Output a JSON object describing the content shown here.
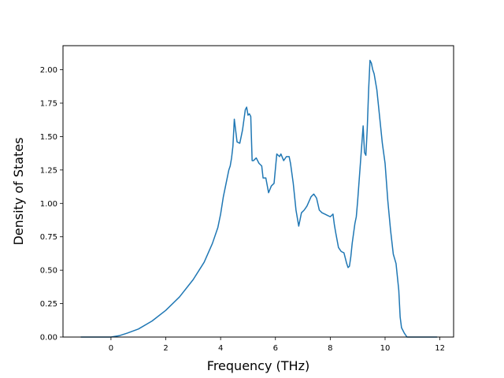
{
  "chart_data": {
    "type": "line",
    "xlabel": "Frequency (THz)",
    "ylabel": "Density of States",
    "xlim": [
      -1.75,
      12.5
    ],
    "ylim": [
      0,
      2.18
    ],
    "xticks": [
      0,
      2,
      4,
      6,
      8,
      10,
      12
    ],
    "xtick_labels": [
      "0",
      "2",
      "4",
      "6",
      "8",
      "10",
      "12"
    ],
    "yticks": [
      0,
      0.25,
      0.5,
      0.75,
      1.0,
      1.25,
      1.5,
      1.75,
      2.0
    ],
    "ytick_labels": [
      "0.00",
      "0.25",
      "0.50",
      "0.75",
      "1.00",
      "1.25",
      "1.50",
      "1.75",
      "2.00"
    ],
    "grid": false,
    "line_color": "#1f77b4",
    "series": [
      {
        "x": [
          -1.1,
          -0.5,
          0.0,
          0.3,
          0.6,
          1.0,
          1.5,
          2.0,
          2.5,
          3.0,
          3.4,
          3.7,
          3.9,
          4.0,
          4.1,
          4.2,
          4.3,
          4.35,
          4.4,
          4.45,
          4.5,
          4.6,
          4.7,
          4.8,
          4.9,
          4.95,
          5.0,
          5.05,
          5.1,
          5.15,
          5.2,
          5.3,
          5.4,
          5.5,
          5.55,
          5.65,
          5.75,
          5.85,
          5.95,
          6.05,
          6.15,
          6.2,
          6.3,
          6.4,
          6.5,
          6.55,
          6.65,
          6.75,
          6.85,
          6.95,
          7.05,
          7.15,
          7.3,
          7.4,
          7.5,
          7.6,
          7.7,
          7.8,
          7.9,
          8.0,
          8.1,
          8.15,
          8.2,
          8.3,
          8.4,
          8.5,
          8.6,
          8.65,
          8.7,
          8.75,
          8.8,
          8.9,
          8.95,
          9.0,
          9.1,
          9.2,
          9.25,
          9.3,
          9.35,
          9.4,
          9.45,
          9.5,
          9.55,
          9.6,
          9.7,
          9.8,
          9.9,
          10.0,
          10.1,
          10.2,
          10.3,
          10.4,
          10.5,
          10.55,
          10.6,
          10.65,
          10.7,
          10.8,
          10.9,
          11.5,
          11.9
        ],
        "y": [
          0.0,
          0.0,
          0.0,
          0.01,
          0.03,
          0.06,
          0.12,
          0.2,
          0.3,
          0.43,
          0.56,
          0.7,
          0.82,
          0.92,
          1.05,
          1.15,
          1.25,
          1.28,
          1.34,
          1.43,
          1.63,
          1.46,
          1.45,
          1.55,
          1.7,
          1.72,
          1.66,
          1.67,
          1.65,
          1.32,
          1.32,
          1.34,
          1.3,
          1.28,
          1.19,
          1.19,
          1.08,
          1.13,
          1.15,
          1.37,
          1.35,
          1.37,
          1.32,
          1.35,
          1.35,
          1.3,
          1.15,
          0.95,
          0.83,
          0.93,
          0.95,
          0.98,
          1.05,
          1.07,
          1.04,
          0.95,
          0.93,
          0.92,
          0.91,
          0.9,
          0.92,
          0.84,
          0.78,
          0.67,
          0.64,
          0.63,
          0.55,
          0.52,
          0.53,
          0.6,
          0.7,
          0.85,
          0.9,
          1.02,
          1.3,
          1.58,
          1.38,
          1.36,
          1.56,
          1.85,
          2.07,
          2.05,
          2.0,
          1.97,
          1.85,
          1.65,
          1.45,
          1.3,
          1.02,
          0.8,
          0.62,
          0.55,
          0.35,
          0.15,
          0.07,
          0.05,
          0.03,
          0.0,
          0.0,
          0.0,
          0.0
        ]
      }
    ]
  }
}
